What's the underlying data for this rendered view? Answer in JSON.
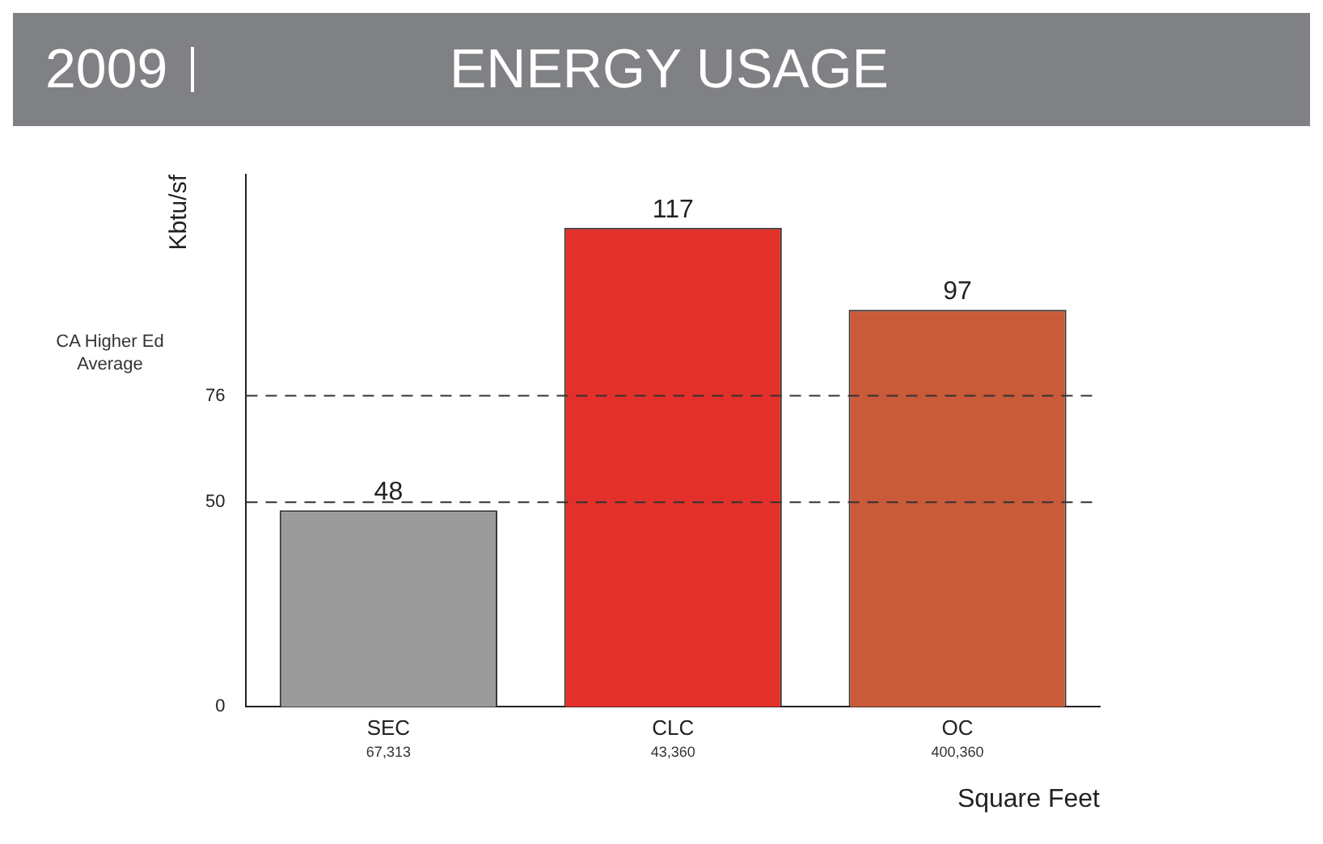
{
  "chart_data": {
    "type": "bar",
    "title": "ENERGY USAGE",
    "subtitle": "2009",
    "ylabel": "Kbtu/sf",
    "xlabel": "Square Feet",
    "categories": [
      "SEC",
      "CLC",
      "OC"
    ],
    "values": [
      48,
      117,
      97
    ],
    "colors": [
      "#9b9b9b",
      "#e3302a",
      "#c95a3a"
    ],
    "data_labels": true,
    "ylim": [
      0,
      130
    ],
    "yticks": [
      0,
      50,
      76
    ],
    "grid": false,
    "legend": false,
    "ref_lines": [
      {
        "axis": "y",
        "value": 76,
        "label": "CA Higher Ed Average",
        "color": "#333333",
        "line_style": "dashed"
      },
      {
        "axis": "y",
        "value": 50,
        "color": "#333333",
        "line_style": "dashed"
      }
    ],
    "annotations": [
      "67,313",
      "43,360",
      "400,360"
    ]
  }
}
